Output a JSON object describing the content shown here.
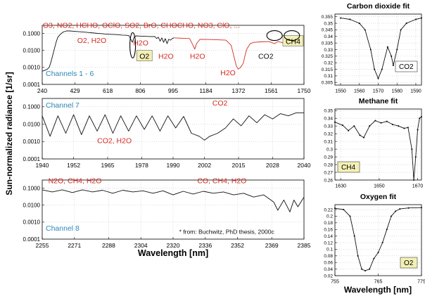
{
  "y_axis_label": "Sun-normalized radiance [1/sr]",
  "x_axis_label_main": "Wavelength [nm]",
  "x_axis_label_insets": "Wavelength [nm]",
  "colors": {
    "red": "#d42a1f",
    "blue": "#2a88b8",
    "black": "#111111",
    "box": "#f3f0b4"
  },
  "chart_data": [
    {
      "id": "channels-1-6",
      "type": "line",
      "title": "",
      "scale": "log",
      "ylim": [
        0.0001,
        0.3
      ],
      "yticks": [
        {
          "v": 0.1,
          "label": "0.1000"
        },
        {
          "v": 0.01,
          "label": "0.0100"
        },
        {
          "v": 0.001,
          "label": "0.0010"
        },
        {
          "v": 0.0001,
          "label": "0.0001"
        }
      ],
      "xlim": [
        240,
        1750
      ],
      "xticks": [
        240,
        429,
        618,
        806,
        995,
        1184,
        1372,
        1561,
        1750
      ],
      "channel_label": "Channels 1 - 6",
      "series": [
        {
          "color": "black",
          "x": [
            240,
            250,
            260,
            270,
            280,
            290,
            300,
            310,
            320,
            330,
            345,
            360,
            380,
            400,
            420,
            440,
            460,
            480,
            500,
            520,
            540,
            560,
            580,
            600,
            620,
            640,
            660,
            680,
            700,
            720,
            740,
            760,
            770,
            780,
            800,
            830,
            860,
            890,
            900,
            910,
            920,
            930,
            940,
            950,
            960,
            970,
            980,
            990,
            1000
          ],
          "y": [
            0.0006,
            0.00065,
            0.0007,
            0.0008,
            0.001,
            0.002,
            0.005,
            0.012,
            0.03,
            0.06,
            0.09,
            0.12,
            0.14,
            0.14,
            0.135,
            0.13,
            0.125,
            0.12,
            0.115,
            0.11,
            0.105,
            0.1,
            0.097,
            0.093,
            0.09,
            0.088,
            0.086,
            0.084,
            0.08,
            0.078,
            0.074,
            0.03,
            0.06,
            0.072,
            0.07,
            0.068,
            0.066,
            0.065,
            0.05,
            0.06,
            0.035,
            0.055,
            0.03,
            0.05,
            0.025,
            0.045,
            0.04,
            0.05,
            0.055
          ]
        },
        {
          "color": "red",
          "x": [
            1000,
            1050,
            1090,
            1110,
            1120,
            1130,
            1150,
            1200,
            1250,
            1300,
            1330,
            1350,
            1360,
            1370,
            1380,
            1390,
            1400,
            1410,
            1420,
            1440,
            1460,
            1500,
            1550,
            1580,
            1600,
            1620,
            1640,
            1660,
            1700,
            1750
          ],
          "y": [
            0.055,
            0.052,
            0.05,
            0.02,
            0.012,
            0.025,
            0.045,
            0.044,
            0.042,
            0.04,
            0.02,
            0.003,
            0.0012,
            0.0008,
            0.0009,
            0.0012,
            0.0018,
            0.005,
            0.012,
            0.025,
            0.03,
            0.032,
            0.033,
            0.025,
            0.033,
            0.03,
            0.024,
            0.032,
            0.03,
            0.028
          ]
        }
      ],
      "annotations": [
        {
          "text": "O3, NO2, HCHO, OClO, SO2, BrO, CHOCHO, NO3, ClO, ...",
          "color": "red",
          "x": 244,
          "y": 0.22
        },
        {
          "text": "O2, H2O",
          "color": "red",
          "x": 442,
          "y": 0.028
        },
        {
          "text": "H2O",
          "color": "red",
          "x": 765,
          "y": 0.02
        },
        {
          "text": "H2O",
          "color": "red",
          "x": 910,
          "y": 0.0032
        },
        {
          "text": "H2O",
          "color": "red",
          "x": 1092,
          "y": 0.0032
        },
        {
          "text": "H2O",
          "color": "red",
          "x": 1268,
          "y": 0.00035
        },
        {
          "text": "CO2",
          "color": "black",
          "x": 1486,
          "y": 0.0032
        }
      ],
      "boxes": [
        {
          "text": "O2",
          "x": 785,
          "y": 0.0032
        },
        {
          "text": "CH4",
          "x": 1628,
          "y": 0.024
        }
      ],
      "ellipses": [
        {
          "x": 762,
          "y": 0.02
        },
        {
          "x": 1580,
          "y": 0.075
        },
        {
          "x": 1680,
          "y": 0.075
        }
      ]
    },
    {
      "id": "channel-7",
      "type": "line",
      "title": "",
      "scale": "log",
      "ylim": [
        0.0001,
        0.3
      ],
      "yticks": [
        {
          "v": 0.1,
          "label": "0.1000"
        },
        {
          "v": 0.01,
          "label": "0.0100"
        },
        {
          "v": 0.001,
          "label": "0.0010"
        },
        {
          "v": 0.0001,
          "label": "0.0001"
        }
      ],
      "xlim": [
        1940,
        2040
      ],
      "xticks": [
        1940,
        1952,
        1965,
        1978,
        1990,
        2002,
        2015,
        2028,
        2040
      ],
      "channel_label": "Channel 7",
      "series": [
        {
          "color": "black",
          "x": [
            1940,
            1943,
            1946,
            1949,
            1952,
            1955,
            1958,
            1961,
            1964,
            1967,
            1970,
            1973,
            1976,
            1979,
            1982,
            1985,
            1988,
            1991,
            1994,
            1997,
            2000,
            2002,
            2004,
            2007,
            2010,
            2013,
            2016,
            2019,
            2022,
            2025,
            2028,
            2031,
            2034,
            2037,
            2040
          ],
          "y": [
            0.03,
            0.002,
            0.03,
            0.003,
            0.035,
            0.0025,
            0.03,
            0.004,
            0.035,
            0.003,
            0.03,
            0.004,
            0.03,
            0.005,
            0.03,
            0.004,
            0.03,
            0.006,
            0.028,
            0.003,
            0.002,
            0.0012,
            0.002,
            0.003,
            0.006,
            0.02,
            0.008,
            0.03,
            0.012,
            0.035,
            0.02,
            0.04,
            0.03,
            0.045,
            0.045
          ]
        }
      ],
      "annotations": [
        {
          "text": "CO2",
          "color": "red",
          "x": 2005,
          "y": 0.12
        },
        {
          "text": "CO2, H2O",
          "color": "red",
          "x": 1961,
          "y": 0.0008
        }
      ]
    },
    {
      "id": "channel-8",
      "type": "line",
      "title": "",
      "scale": "log",
      "ylim": [
        0.0001,
        0.3
      ],
      "yticks": [
        {
          "v": 0.1,
          "label": "0.1000"
        },
        {
          "v": 0.01,
          "label": "0.0100"
        },
        {
          "v": 0.001,
          "label": "0.0010"
        },
        {
          "v": 0.0001,
          "label": "0.0001"
        }
      ],
      "xlim": [
        2255,
        2385
      ],
      "xticks": [
        2255,
        2271,
        2288,
        2304,
        2320,
        2336,
        2352,
        2369,
        2385
      ],
      "channel_label": "Channel 8",
      "series": [
        {
          "color": "black",
          "x": [
            2255,
            2260,
            2265,
            2270,
            2275,
            2280,
            2285,
            2290,
            2295,
            2300,
            2305,
            2310,
            2315,
            2320,
            2325,
            2330,
            2335,
            2340,
            2345,
            2350,
            2355,
            2360,
            2365,
            2370,
            2372,
            2375,
            2378,
            2380,
            2382,
            2385
          ],
          "y": [
            0.08,
            0.06,
            0.08,
            0.055,
            0.08,
            0.06,
            0.075,
            0.05,
            0.075,
            0.06,
            0.07,
            0.05,
            0.07,
            0.04,
            0.065,
            0.045,
            0.065,
            0.05,
            0.06,
            0.04,
            0.05,
            0.03,
            0.04,
            0.015,
            0.005,
            0.02,
            0.004,
            0.02,
            0.008,
            0.03
          ]
        }
      ],
      "annotations": [
        {
          "text": "N2O, CH4, H2O",
          "color": "red",
          "x": 2258,
          "y": 0.2
        },
        {
          "text": "CO, CH4, H2O",
          "color": "red",
          "x": 2332,
          "y": 0.2
        },
        {
          "text": "* from: Buchwitz, PhD thesis, 2000c",
          "color": "black",
          "x": 2323,
          "y": 0.0002
        }
      ]
    },
    {
      "id": "co2-fit",
      "type": "line",
      "title": "Carbon dioxide fit",
      "xlim": [
        1547,
        1593
      ],
      "xticks": [
        1550,
        1560,
        1570,
        1580,
        1590
      ],
      "ylim": [
        0.303,
        0.357
      ],
      "yticks": [
        0.355,
        0.35,
        0.345,
        0.34,
        0.335,
        0.33,
        0.325,
        0.32,
        0.315,
        0.31,
        0.305
      ],
      "box_label": "CO2",
      "series": [
        {
          "color": "black",
          "x": [
            1550,
            1555,
            1560,
            1563,
            1566,
            1568,
            1570,
            1572,
            1575,
            1577,
            1578,
            1580,
            1582,
            1585,
            1590,
            1593
          ],
          "y": [
            0.354,
            0.353,
            0.35,
            0.345,
            0.33,
            0.315,
            0.308,
            0.315,
            0.332,
            0.325,
            0.318,
            0.33,
            0.345,
            0.35,
            0.353,
            0.354
          ]
        }
      ]
    },
    {
      "id": "ch4-fit",
      "type": "line",
      "title": "Methane fit",
      "xlim": [
        1627,
        1672
      ],
      "xticks": [
        1630,
        1650,
        1670
      ],
      "ylim": [
        0.26,
        0.352
      ],
      "yticks": [
        0.35,
        0.34,
        0.33,
        0.32,
        0.31,
        0.3,
        0.29,
        0.28,
        0.27,
        0.26
      ],
      "box_label": "CH4",
      "series": [
        {
          "color": "black",
          "x": [
            1627,
            1631,
            1634,
            1637,
            1640,
            1642,
            1645,
            1648,
            1651,
            1654,
            1657,
            1660,
            1663,
            1665,
            1667,
            1668,
            1669,
            1670,
            1671,
            1672
          ],
          "y": [
            0.335,
            0.331,
            0.324,
            0.33,
            0.318,
            0.315,
            0.33,
            0.337,
            0.334,
            0.336,
            0.332,
            0.33,
            0.327,
            0.328,
            0.3,
            0.26,
            0.29,
            0.325,
            0.34,
            0.342
          ]
        }
      ]
    },
    {
      "id": "o2-fit",
      "type": "line",
      "title": "Oxygen fit",
      "xlim": [
        755,
        775
      ],
      "xticks": [
        755,
        765,
        775
      ],
      "ylim": [
        0.02,
        0.235
      ],
      "yticks": [
        0.22,
        0.2,
        0.18,
        0.16,
        0.14,
        0.12,
        0.1,
        0.08,
        0.06,
        0.04,
        0.02
      ],
      "box_label": "O2",
      "series": [
        {
          "color": "black",
          "x": [
            755,
            757,
            758.5,
            759.5,
            760.3,
            761.2,
            762,
            763,
            764,
            765,
            766,
            767,
            768,
            769,
            770,
            772,
            775
          ],
          "y": [
            0.224,
            0.22,
            0.2,
            0.14,
            0.08,
            0.04,
            0.035,
            0.04,
            0.072,
            0.09,
            0.12,
            0.16,
            0.2,
            0.215,
            0.222,
            0.225,
            0.226
          ]
        }
      ]
    }
  ]
}
